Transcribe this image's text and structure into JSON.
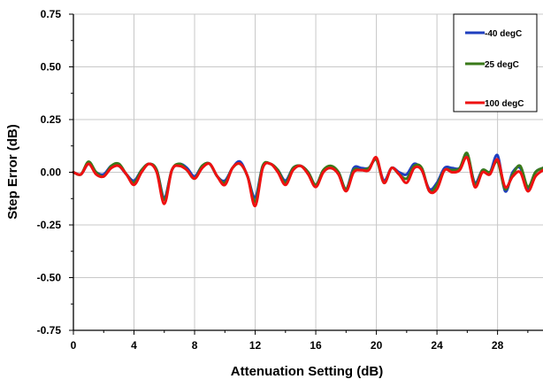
{
  "chart_data": {
    "type": "line",
    "title": "",
    "xlabel": "Attenuation Setting (dB)",
    "ylabel": "Step Error (dB)",
    "xlim": [
      0,
      31
    ],
    "ylim": [
      -0.75,
      0.75
    ],
    "xticks": [
      0,
      4,
      8,
      12,
      16,
      20,
      24,
      28
    ],
    "xtick_labels": [
      "0",
      "4",
      "8",
      "12",
      "16",
      "20",
      "24",
      "28"
    ],
    "yticks": [
      0.75,
      0.5,
      0.25,
      0.0,
      -0.25,
      -0.5,
      -0.75
    ],
    "ytick_labels": [
      "0.75",
      "0.50",
      "0.25",
      "0.00",
      "-0.25",
      "-0.50",
      "-0.75"
    ],
    "grid": true,
    "legend_position": "top-right",
    "x": [
      0,
      0.5,
      1,
      1.5,
      2,
      2.5,
      3,
      3.5,
      4,
      4.5,
      5,
      5.5,
      6,
      6.5,
      7,
      7.5,
      8,
      8.5,
      9,
      9.5,
      10,
      10.5,
      11,
      11.5,
      12,
      12.5,
      13,
      13.5,
      14,
      14.5,
      15,
      15.5,
      16,
      16.5,
      17,
      17.5,
      18,
      18.5,
      19,
      19.5,
      20,
      20.5,
      21,
      21.5,
      22,
      22.5,
      23,
      23.5,
      24,
      24.5,
      25,
      25.5,
      26,
      26.5,
      27,
      27.5,
      28,
      28.5,
      29,
      29.5,
      30,
      30.5,
      31
    ],
    "series": [
      {
        "name": "-40 degC",
        "color": "#1f3fbf",
        "values": [
          0.0,
          -0.01,
          0.04,
          0.0,
          -0.01,
          0.03,
          0.03,
          -0.01,
          -0.04,
          0.01,
          0.04,
          0.01,
          -0.12,
          0.01,
          0.04,
          0.02,
          -0.02,
          0.03,
          0.04,
          -0.02,
          -0.04,
          0.02,
          0.05,
          -0.02,
          -0.12,
          0.03,
          0.04,
          0.01,
          -0.04,
          0.02,
          0.03,
          0.0,
          -0.06,
          0.01,
          0.02,
          0.0,
          -0.08,
          0.02,
          0.02,
          0.02,
          0.06,
          -0.04,
          0.02,
          0.0,
          -0.01,
          0.04,
          0.01,
          -0.08,
          -0.05,
          0.02,
          0.02,
          0.02,
          0.08,
          -0.05,
          0.01,
          0.0,
          0.08,
          -0.09,
          0.0,
          0.02,
          -0.08,
          0.0,
          0.02
        ]
      },
      {
        "name": "25 degC",
        "color": "#3a7a1a",
        "values": [
          0.0,
          -0.01,
          0.05,
          0.0,
          -0.02,
          0.03,
          0.04,
          -0.01,
          -0.05,
          0.01,
          0.04,
          0.01,
          -0.13,
          0.01,
          0.04,
          0.01,
          -0.03,
          0.03,
          0.04,
          -0.02,
          -0.05,
          0.02,
          0.04,
          -0.02,
          -0.14,
          0.03,
          0.04,
          0.01,
          -0.05,
          0.02,
          0.03,
          0.0,
          -0.06,
          0.01,
          0.03,
          0.0,
          -0.08,
          0.01,
          0.01,
          0.02,
          0.06,
          -0.05,
          0.02,
          -0.01,
          -0.03,
          0.03,
          0.02,
          -0.09,
          -0.06,
          0.01,
          0.01,
          0.02,
          0.09,
          -0.06,
          0.01,
          0.0,
          0.05,
          -0.08,
          -0.01,
          0.03,
          -0.07,
          0.0,
          0.02
        ]
      },
      {
        "name": "100 degC",
        "color": "#ee1111",
        "values": [
          0.0,
          -0.01,
          0.04,
          -0.01,
          -0.02,
          0.02,
          0.03,
          -0.01,
          -0.06,
          0.0,
          0.04,
          0.0,
          -0.15,
          0.01,
          0.03,
          0.01,
          -0.03,
          0.02,
          0.04,
          -0.02,
          -0.06,
          0.02,
          0.04,
          -0.02,
          -0.16,
          0.02,
          0.04,
          0.0,
          -0.06,
          0.01,
          0.03,
          -0.01,
          -0.07,
          0.0,
          0.02,
          -0.01,
          -0.09,
          0.0,
          0.01,
          0.01,
          0.07,
          -0.05,
          0.02,
          -0.01,
          -0.05,
          0.02,
          0.01,
          -0.09,
          -0.08,
          0.01,
          0.0,
          0.01,
          0.07,
          -0.07,
          0.0,
          -0.01,
          0.06,
          -0.07,
          -0.02,
          0.0,
          -0.09,
          -0.02,
          0.01
        ]
      }
    ]
  }
}
